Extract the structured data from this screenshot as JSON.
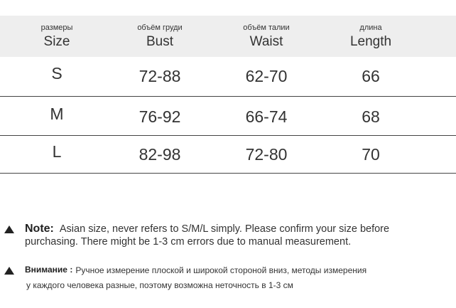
{
  "table": {
    "header": [
      {
        "ru": "размеры",
        "en": "Size"
      },
      {
        "ru": "объём груди",
        "en": "Bust"
      },
      {
        "ru": "объём талии",
        "en": "Waist"
      },
      {
        "ru": "длина",
        "en": "Length"
      }
    ],
    "rows": [
      [
        "S",
        "72-88",
        "62-70",
        "66"
      ],
      [
        "M",
        "76-92",
        "66-74",
        "68"
      ],
      [
        "L",
        "82-98",
        "72-80",
        "70"
      ]
    ]
  },
  "notes": [
    {
      "label": "Note:",
      "lines": [
        "Asian size, never refers to S/M/L simply. Please confirm your size before",
        "purchasing. There might be 1-3 cm errors due to manual measurement."
      ]
    },
    {
      "label": "Внимание :",
      "lines": [
        "Ручное измерение плоской и широкой стороной вниз, методы измерения",
        "у каждого человека разные, поэтому возможна неточность в 1-3 см"
      ]
    }
  ]
}
